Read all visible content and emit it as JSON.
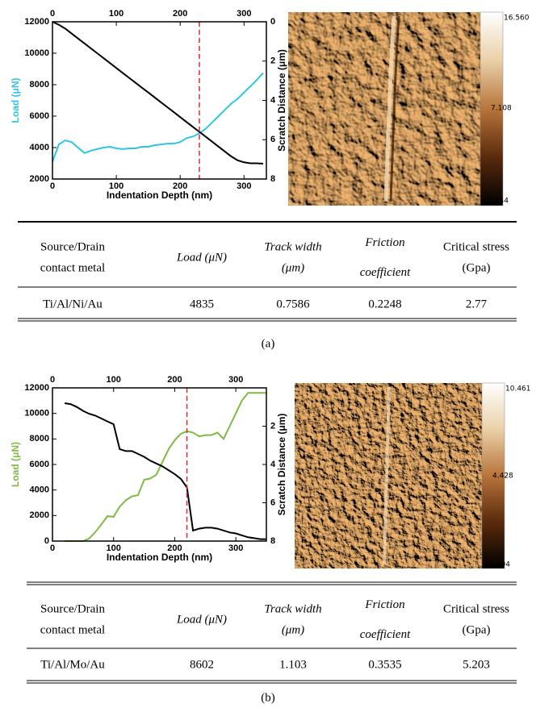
{
  "chart_data": [
    {
      "type": "line",
      "xlabel": "Indentation Depth (nm)",
      "ylabel": "Load (μN)",
      "y2label": "Scratch Distance (μm)",
      "xlim": [
        0,
        335
      ],
      "xticks": [
        0,
        100,
        200,
        300
      ],
      "x2ticks": [
        0,
        100,
        200,
        300
      ],
      "ylim": [
        2000,
        12000
      ],
      "yticks": [
        2000,
        4000,
        6000,
        8000,
        10000,
        12000
      ],
      "y2lim": [
        8,
        0
      ],
      "y2ticks": [
        0,
        2,
        4,
        6,
        8
      ],
      "vline": 230,
      "vline_color": "#e8262b",
      "ylabel_color": "#2ec5e6",
      "x": [
        0,
        10,
        20,
        30,
        40,
        50,
        60,
        70,
        80,
        90,
        100,
        110,
        120,
        130,
        140,
        150,
        160,
        170,
        180,
        190,
        200,
        210,
        220,
        230,
        240,
        250,
        260,
        270,
        280,
        290,
        300,
        310,
        320,
        330
      ],
      "series": [
        {
          "color": "#2ec5e6",
          "values": [
            3100,
            4200,
            4450,
            4350,
            4000,
            3650,
            3800,
            3900,
            4000,
            4050,
            3950,
            3900,
            3950,
            3950,
            4050,
            4050,
            4150,
            4200,
            4250,
            4250,
            4350,
            4600,
            4700,
            4900,
            5200,
            5600,
            6000,
            6400,
            6800,
            7100,
            7500,
            7900,
            8300,
            8750
          ]
        },
        {
          "color": "#000000",
          "axis": "y2",
          "values": [
            0,
            0.15,
            0.35,
            0.6,
            0.85,
            1.1,
            1.35,
            1.6,
            1.85,
            2.1,
            2.35,
            2.6,
            2.85,
            3.1,
            3.35,
            3.6,
            3.85,
            4.1,
            4.35,
            4.6,
            4.85,
            5.1,
            5.35,
            5.6,
            5.85,
            6.1,
            6.35,
            6.6,
            6.85,
            7.05,
            7.15,
            7.2,
            7.2,
            7.22
          ]
        }
      ]
    },
    {
      "type": "line",
      "xlabel": "Indentation Depth (nm)",
      "ylabel": "Load (μN)",
      "y2label": "Scratch Distance (μm)",
      "xlim": [
        0,
        350
      ],
      "xticks": [
        0,
        100,
        200,
        300
      ],
      "x2ticks": [
        0,
        100,
        200,
        300
      ],
      "ylim": [
        0,
        12000
      ],
      "yticks": [
        0,
        2000,
        4000,
        6000,
        8000,
        10000,
        12000
      ],
      "y2lim": [
        8,
        0
      ],
      "y2ticks": [
        2,
        4,
        6,
        8
      ],
      "vline": 220,
      "vline_color": "#e8262b",
      "ylabel_color": "#7fba45",
      "x": [
        0,
        10,
        20,
        30,
        40,
        50,
        60,
        70,
        80,
        90,
        100,
        110,
        120,
        130,
        140,
        150,
        160,
        170,
        180,
        190,
        200,
        210,
        220,
        230,
        240,
        250,
        260,
        270,
        280,
        290,
        300,
        310,
        320,
        330,
        340,
        350
      ],
      "series": [
        {
          "color": "#7fba45",
          "values": [
            null,
            null,
            0,
            0,
            0,
            0,
            200,
            700,
            1300,
            1950,
            1900,
            2700,
            3200,
            3500,
            3600,
            4800,
            4900,
            5200,
            6200,
            7200,
            7900,
            8400,
            8600,
            8500,
            8200,
            8300,
            8300,
            8500,
            8000,
            9000,
            10000,
            11000,
            11600,
            11600,
            11600,
            11600
          ]
        },
        {
          "color": "#000000",
          "axis": "y2",
          "values": [
            null,
            null,
            0.8,
            0.85,
            1.0,
            1.2,
            1.35,
            1.45,
            1.6,
            1.75,
            1.9,
            3.2,
            3.3,
            3.3,
            3.45,
            3.6,
            3.8,
            3.95,
            4.1,
            4.3,
            4.5,
            4.75,
            5.2,
            7.45,
            7.35,
            7.3,
            7.3,
            7.35,
            7.45,
            7.55,
            7.6,
            7.7,
            7.8,
            7.85,
            7.9,
            7.9
          ]
        }
      ]
    }
  ],
  "panels": [
    {
      "colorbar": {
        "max": "16.560",
        "mid": "7.108",
        "min": "-2.344"
      },
      "table": {
        "header": [
          [
            "Source/Drain",
            "contact metal"
          ],
          [
            "Load (μN)"
          ],
          [
            "Track width",
            "(μm)"
          ],
          [
            "Friction",
            "coefficient"
          ],
          [
            "Critical stress",
            "(Gpa)"
          ]
        ],
        "rows": [
          [
            "Ti/Al/Ni/Au",
            "4835",
            "0.7586",
            "0.2248",
            "2.77"
          ]
        ]
      },
      "caption": "(a)"
    },
    {
      "colorbar": {
        "max": "10.461",
        "mid": "4.428",
        "min": "-1.604"
      },
      "table": {
        "header": [
          [
            "Source/Drain",
            "contact metal"
          ],
          [
            "Load (μN)"
          ],
          [
            "Track width",
            "(μm)"
          ],
          [
            "Friction",
            "coefficient"
          ],
          [
            "Critical stress",
            "(Gpa)"
          ]
        ],
        "rows": [
          [
            "Ti/Al/Mo/Au",
            "8602",
            "1.103",
            "0.3535",
            "5.203"
          ]
        ]
      },
      "caption": "(b)"
    }
  ]
}
